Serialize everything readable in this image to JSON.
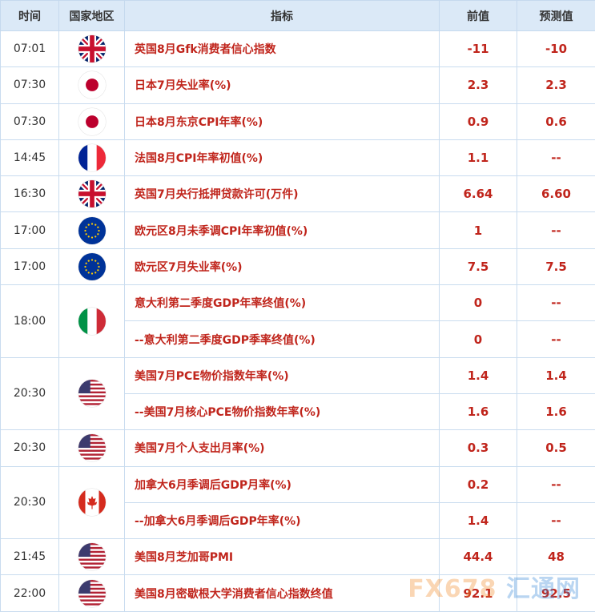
{
  "header": {
    "time": "时间",
    "region": "国家地区",
    "indicator": "指标",
    "previous": "前值",
    "forecast": "预测值"
  },
  "colors": {
    "value_red": "#c0251c",
    "header_bg": "#dbe9f7",
    "border": "#c9dcef"
  },
  "groups": [
    {
      "time": "07:01",
      "flag": "uk-flag-icon",
      "items": [
        {
          "name": "英国8月Gfk消费者信心指数",
          "previous": "-11",
          "forecast": "-10"
        }
      ]
    },
    {
      "time": "07:30",
      "flag": "japan-flag-icon",
      "items": [
        {
          "name": "日本7月失业率(%)",
          "previous": "2.3",
          "forecast": "2.3"
        }
      ]
    },
    {
      "time": "07:30",
      "flag": "japan-flag-icon",
      "items": [
        {
          "name": "日本8月东京CPI年率(%)",
          "previous": "0.9",
          "forecast": "0.6"
        }
      ]
    },
    {
      "time": "14:45",
      "flag": "france-flag-icon",
      "items": [
        {
          "name": "法国8月CPI年率初值(%)",
          "previous": "1.1",
          "forecast": "--"
        }
      ]
    },
    {
      "time": "16:30",
      "flag": "uk-flag-icon",
      "items": [
        {
          "name": "英国7月央行抵押贷款许可(万件)",
          "previous": "6.64",
          "forecast": "6.60"
        }
      ]
    },
    {
      "time": "17:00",
      "flag": "eu-flag-icon",
      "items": [
        {
          "name": "欧元区8月未季调CPI年率初值(%)",
          "previous": "1",
          "forecast": "--"
        }
      ]
    },
    {
      "time": "17:00",
      "flag": "eu-flag-icon",
      "items": [
        {
          "name": "欧元区7月失业率(%)",
          "previous": "7.5",
          "forecast": "7.5"
        }
      ]
    },
    {
      "time": "18:00",
      "flag": "italy-flag-icon",
      "items": [
        {
          "name": "意大利第二季度GDP年率终值(%)",
          "previous": "0",
          "forecast": "--"
        },
        {
          "name": "--意大利第二季度GDP季率终值(%)",
          "previous": "0",
          "forecast": "--"
        }
      ]
    },
    {
      "time": "20:30",
      "flag": "us-flag-icon",
      "items": [
        {
          "name": "美国7月PCE物价指数年率(%)",
          "previous": "1.4",
          "forecast": "1.4"
        },
        {
          "name": "--美国7月核心PCE物价指数年率(%)",
          "previous": "1.6",
          "forecast": "1.6"
        }
      ]
    },
    {
      "time": "20:30",
      "flag": "us-flag-icon",
      "items": [
        {
          "name": "美国7月个人支出月率(%)",
          "previous": "0.3",
          "forecast": "0.5"
        }
      ]
    },
    {
      "time": "20:30",
      "flag": "canada-flag-icon",
      "items": [
        {
          "name": "加拿大6月季调后GDP月率(%)",
          "previous": "0.2",
          "forecast": "--"
        },
        {
          "name": "--加拿大6月季调后GDP年率(%)",
          "previous": "1.4",
          "forecast": "--"
        }
      ]
    },
    {
      "time": "21:45",
      "flag": "us-flag-icon",
      "items": [
        {
          "name": "美国8月芝加哥PMI",
          "previous": "44.4",
          "forecast": "48"
        }
      ]
    },
    {
      "time": "22:00",
      "flag": "us-flag-icon",
      "items": [
        {
          "name": "美国8月密歇根大学消费者信心指数终值",
          "previous": "92.1",
          "forecast": "92.5"
        }
      ]
    }
  ],
  "watermark": {
    "logo_a": "FX678",
    "logo_b": "汇通网"
  }
}
